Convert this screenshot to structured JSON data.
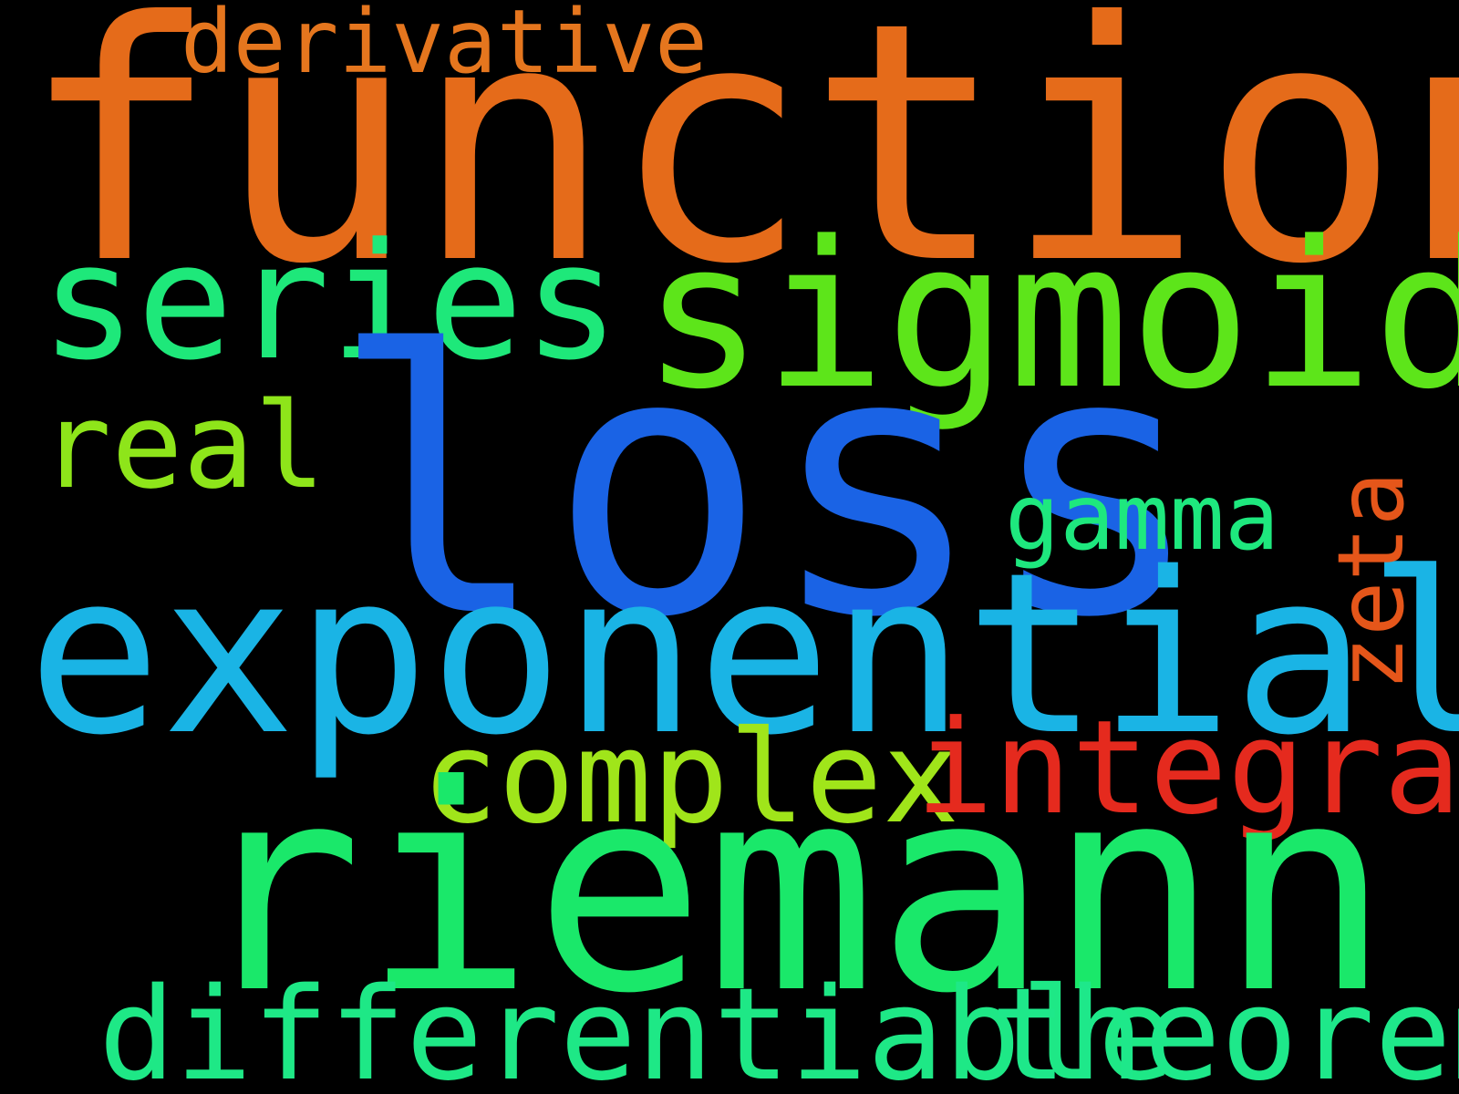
{
  "words": [
    {
      "text": "function",
      "color": "#E56B1A"
    },
    {
      "text": "derivative",
      "color": "#E5761E"
    },
    {
      "text": "series",
      "color": "#1EE87A"
    },
    {
      "text": "sigmoid",
      "color": "#5DE51A"
    },
    {
      "text": "real",
      "color": "#8EE51A"
    },
    {
      "text": "loss",
      "color": "#1A63E5"
    },
    {
      "text": "gamma",
      "color": "#1EE87E"
    },
    {
      "text": "exponential",
      "color": "#1AB4E5"
    },
    {
      "text": "zeta",
      "color": "#E5561A"
    },
    {
      "text": "complex",
      "color": "#A0E51A"
    },
    {
      "text": "integral",
      "color": "#E52A1E"
    },
    {
      "text": "riemann",
      "color": "#1AE86A"
    },
    {
      "text": "differentiable",
      "color": "#1EE886"
    },
    {
      "text": "theorem",
      "color": "#1EE88A"
    }
  ],
  "colors": {
    "background": "#000000"
  }
}
